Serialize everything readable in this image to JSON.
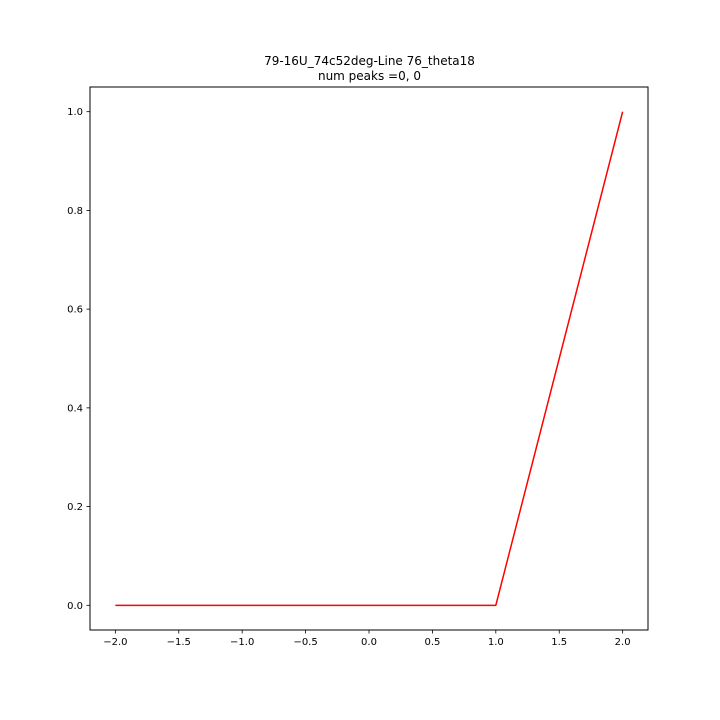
{
  "figure": {
    "background": "#ffffff"
  },
  "chart_data": {
    "type": "line",
    "title": "79-16U_74c52deg-Line 76_theta18",
    "subtitle": "num peaks =0, 0",
    "xlabel": "",
    "ylabel": "",
    "xlim": [
      -2.2,
      2.2
    ],
    "ylim": [
      -0.05,
      1.05
    ],
    "xticks": [
      -2.0,
      -1.5,
      -1.0,
      -0.5,
      0.0,
      0.5,
      1.0,
      1.5,
      2.0
    ],
    "xtick_labels": [
      "−2.0",
      "−1.5",
      "−1.0",
      "−0.5",
      "0.0",
      "0.5",
      "1.0",
      "1.5",
      "2.0"
    ],
    "yticks": [
      0.0,
      0.2,
      0.4,
      0.6,
      0.8,
      1.0
    ],
    "ytick_labels": [
      "0.0",
      "0.2",
      "0.4",
      "0.6",
      "0.8",
      "1.0"
    ],
    "grid": false,
    "legend": "none",
    "series": [
      {
        "color": "#ff0000",
        "x": [
          -2.0,
          1.0,
          2.0
        ],
        "y": [
          0.0,
          0.0,
          1.0
        ]
      }
    ]
  }
}
